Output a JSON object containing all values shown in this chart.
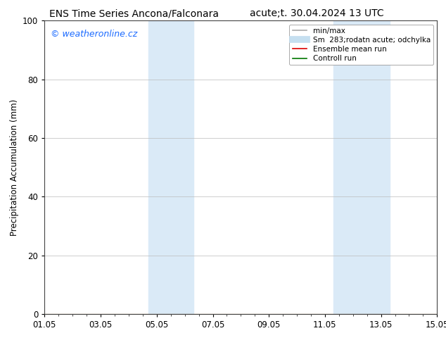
{
  "title_left": "ENS Time Series Ancona/Falconara",
  "title_right": "acute;t. 30.04.2024 13 UTC",
  "ylabel": "Precipitation Accumulation (mm)",
  "ylim": [
    0,
    100
  ],
  "yticks": [
    0,
    20,
    40,
    60,
    80,
    100
  ],
  "xtick_labels": [
    "01.05",
    "03.05",
    "05.05",
    "07.05",
    "09.05",
    "11.05",
    "13.05",
    "15.05"
  ],
  "xtick_positions": [
    0,
    2,
    4,
    6,
    8,
    10,
    12,
    14
  ],
  "xlim": [
    0,
    14
  ],
  "shaded_bands": [
    {
      "xstart": 3.7,
      "xend": 5.3,
      "color": "#daeaf7"
    },
    {
      "xstart": 10.3,
      "xend": 12.3,
      "color": "#daeaf7"
    }
  ],
  "watermark_text": "© weatheronline.cz",
  "watermark_color": "#1a6aff",
  "bg_color": "#ffffff",
  "plot_bg_color": "#ffffff",
  "grid_color": "#bbbbbb",
  "legend_entries": [
    {
      "label": "min/max",
      "color": "#aaaaaa",
      "lw": 1.2,
      "ls": "-"
    },
    {
      "label": "Sm  283;rodatn acute; odchylka",
      "color": "#c5dff0",
      "lw": 7,
      "ls": "-"
    },
    {
      "label": "Ensemble mean run",
      "color": "#dd0000",
      "lw": 1.2,
      "ls": "-"
    },
    {
      "label": "Controll run",
      "color": "#007700",
      "lw": 1.2,
      "ls": "-"
    }
  ],
  "font_size_title": 10,
  "font_size_tick": 8.5,
  "font_size_legend": 7.5,
  "font_size_ylabel": 8.5,
  "font_size_watermark": 9
}
